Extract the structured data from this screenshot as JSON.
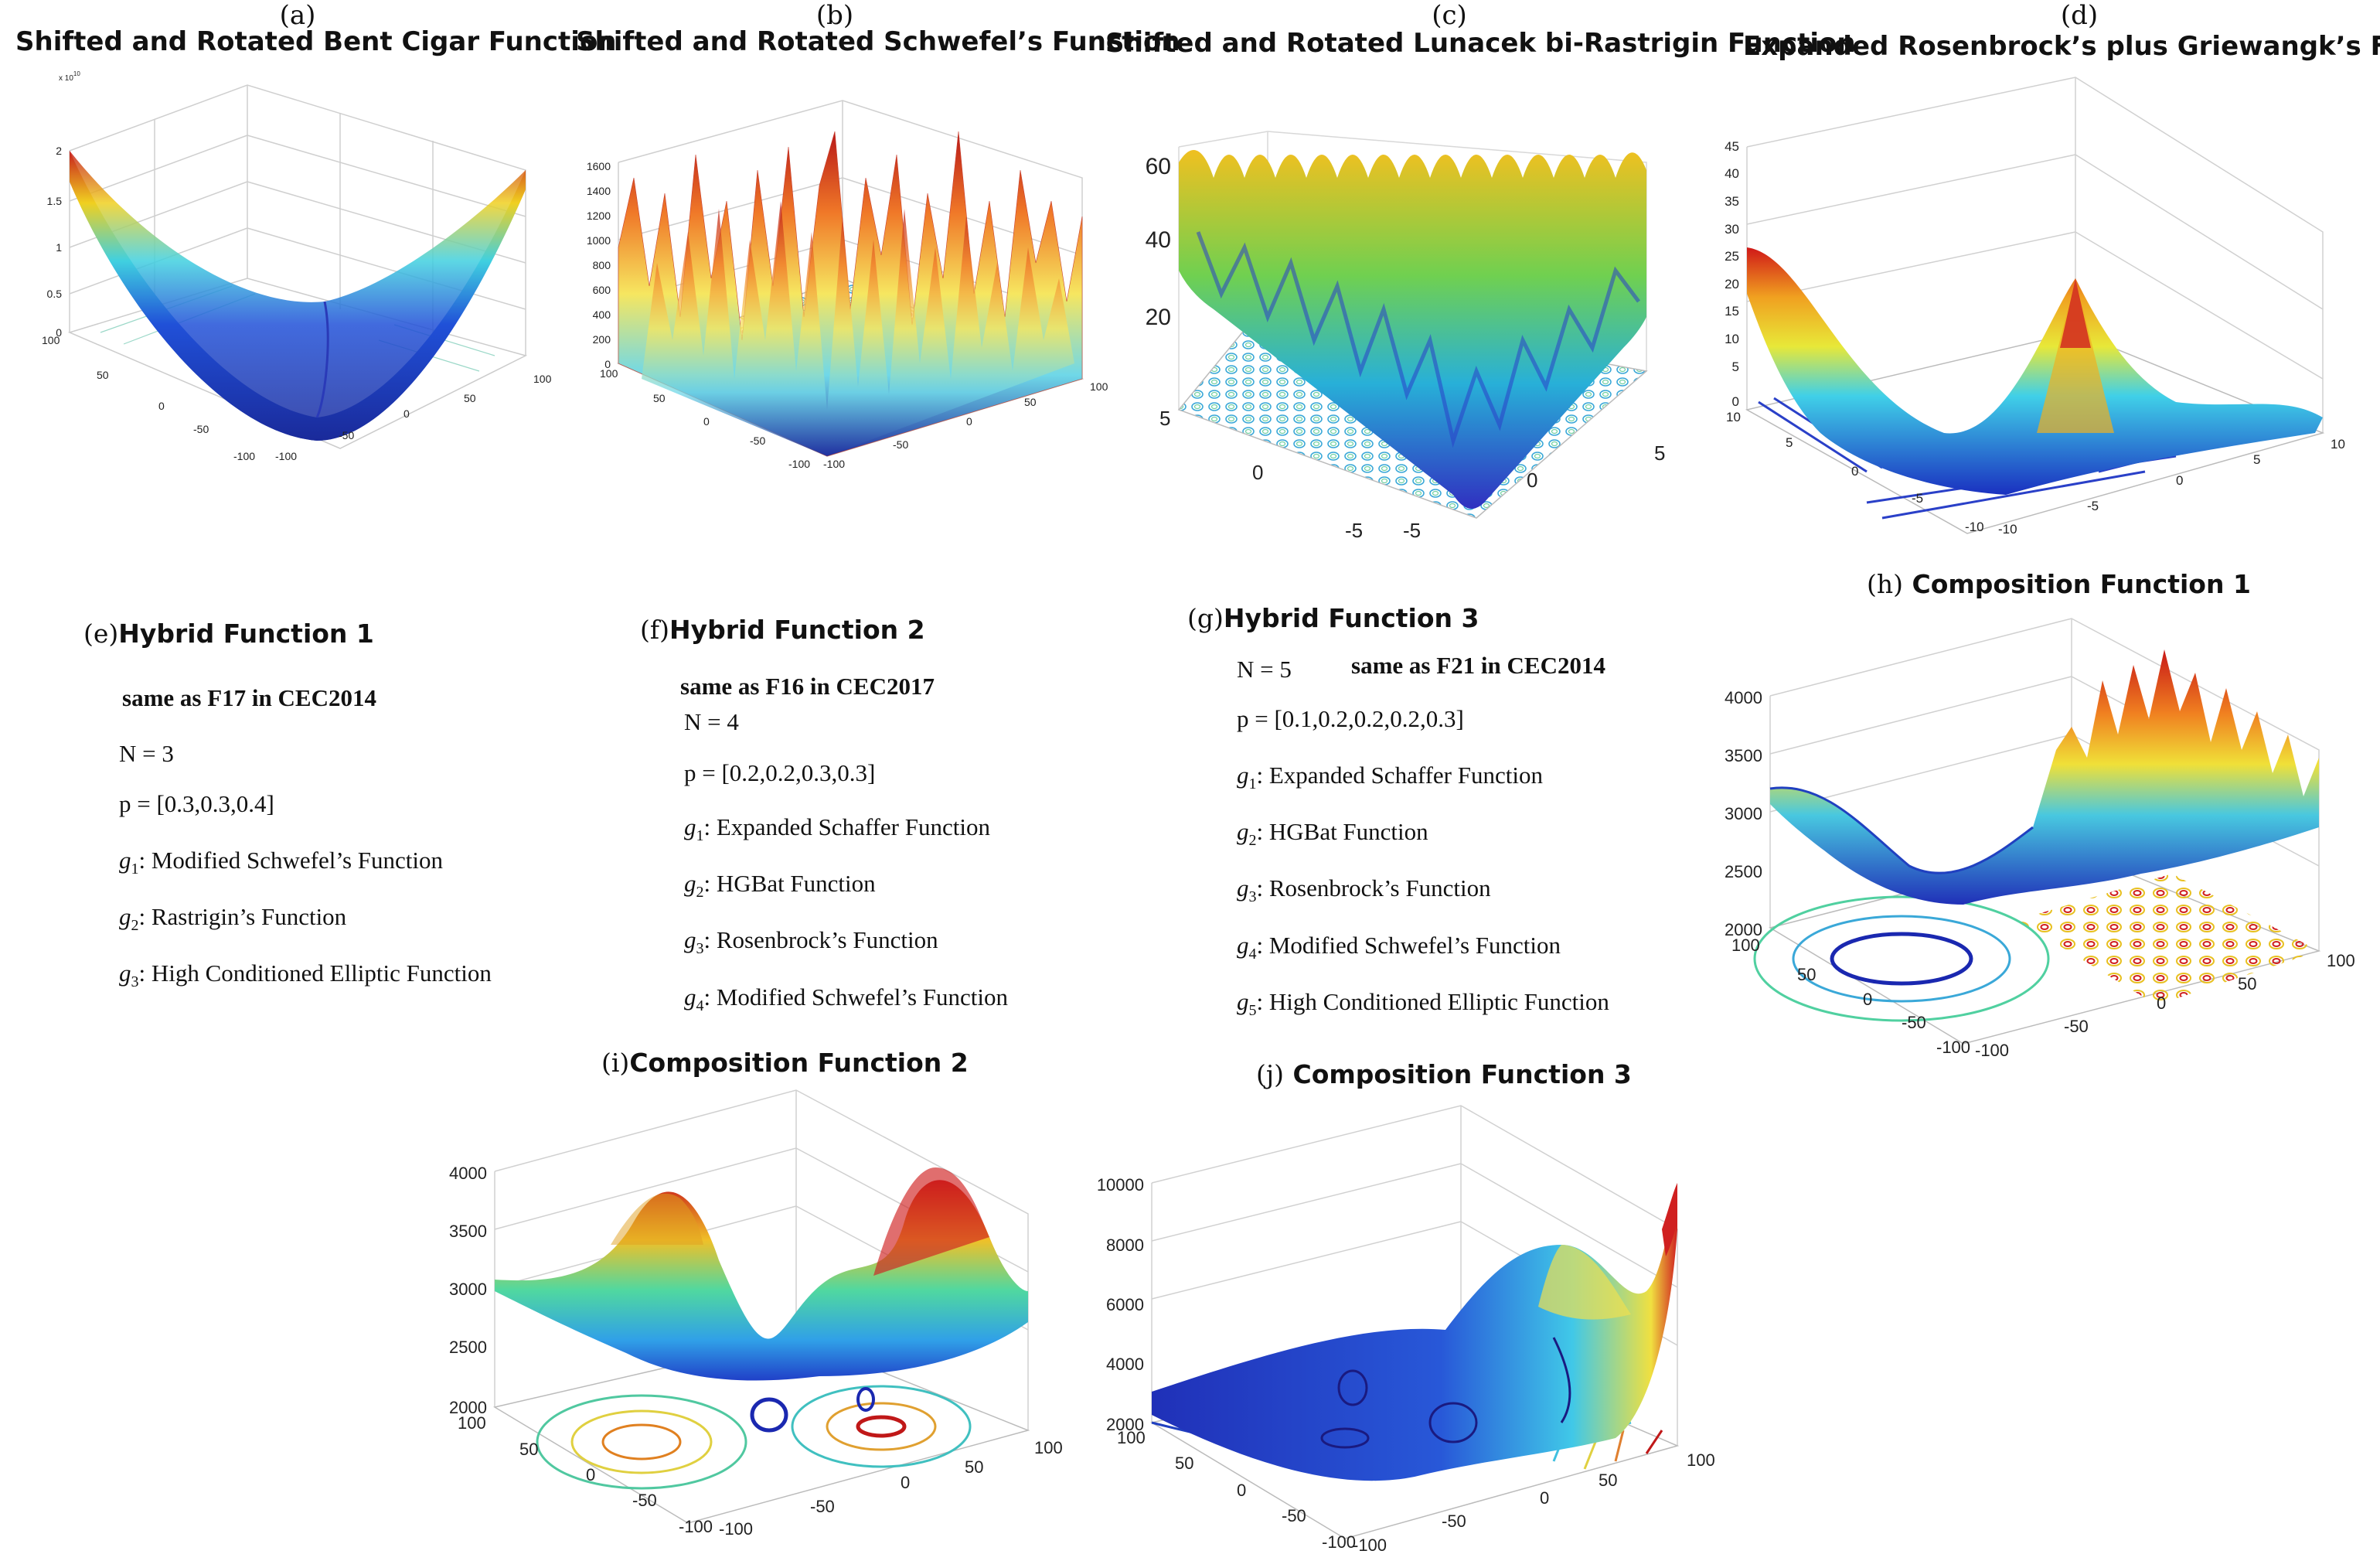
{
  "panels": {
    "a": {
      "letter": "(a)",
      "title": "Shifted and Rotated Bent Cigar Function",
      "z_ticks": [
        "2",
        "1.5",
        "1",
        "0.5",
        "0"
      ],
      "exponent": "x 10",
      "exp_power": "10",
      "y_ticks": [
        "100",
        "50",
        "0",
        "-50",
        "-100"
      ],
      "x_ticks": [
        "-100",
        "-50",
        "0",
        "50",
        "100"
      ]
    },
    "b": {
      "letter": "(b)",
      "title": "Shifted and Rotated Schwefel’s Function",
      "z_ticks": [
        "1600",
        "1400",
        "1200",
        "1000",
        "800",
        "600",
        "400",
        "200",
        "0"
      ],
      "y_ticks": [
        "100",
        "50",
        "0",
        "-50",
        "-100"
      ],
      "x_ticks": [
        "-100",
        "-50",
        "0",
        "50",
        "100"
      ]
    },
    "c": {
      "letter": "(c)",
      "title": "Shifted and Rotated Lunacek bi-Rastrigin Function",
      "z_ticks": [
        "60",
        "40",
        "20"
      ],
      "y_ticks": [
        "5",
        "0",
        "-5"
      ],
      "x_ticks": [
        "-5",
        "0",
        "5"
      ]
    },
    "d": {
      "letter": "(d)",
      "title": "Expanded Rosenbrock’s plus Griewangk’s Function",
      "z_ticks": [
        "45",
        "40",
        "35",
        "30",
        "25",
        "20",
        "15",
        "10",
        "5",
        "0"
      ],
      "y_ticks": [
        "10",
        "5",
        "0",
        "-5",
        "-10"
      ],
      "x_ticks": [
        "-10",
        "-5",
        "0",
        "5",
        "10"
      ]
    },
    "h": {
      "letter": "(h)",
      "title": "Composition Function 1",
      "z_ticks": [
        "4000",
        "3500",
        "3000",
        "2500",
        "2000"
      ],
      "y_ticks": [
        "100",
        "50",
        "0",
        "-50",
        "-100"
      ],
      "x_ticks": [
        "-100",
        "-50",
        "0",
        "50",
        "100"
      ]
    },
    "i": {
      "letter": "(i)",
      "title": "Composition Function 2",
      "z_ticks": [
        "4000",
        "3500",
        "3000",
        "2500",
        "2000"
      ],
      "y_ticks": [
        "100",
        "50",
        "0",
        "-50",
        "-100"
      ],
      "x_ticks": [
        "-100",
        "-50",
        "0",
        "50",
        "100"
      ]
    },
    "j": {
      "letter": "(j)",
      "title": "Composition Function 3",
      "z_ticks": [
        "10000",
        "8000",
        "6000",
        "4000",
        "2000"
      ],
      "y_ticks": [
        "100",
        "50",
        "0",
        "-50",
        "-100"
      ],
      "x_ticks": [
        "-100",
        "-50",
        "0",
        "50",
        "100"
      ]
    }
  },
  "hybrid1": {
    "letter": "(e)",
    "title": "Hybrid Function 1",
    "note": "same as F17 in CEC2014",
    "n": "N = 3",
    "p": "p = [0.3,0.3,0.4]",
    "g": [
      {
        "sym": "g",
        "idx": "1",
        "text": ": Modified Schwefel’s Function"
      },
      {
        "sym": "g",
        "idx": "2",
        "text": ": Rastrigin’s Function"
      },
      {
        "sym": "g",
        "idx": "3",
        "text": ": High Conditioned Elliptic Function"
      }
    ]
  },
  "hybrid2": {
    "letter": "(f)",
    "title": "Hybrid Function 2",
    "note": "same as F16 in CEC2017",
    "n": "N = 4",
    "p": "p = [0.2,0.2,0.3,0.3]",
    "g": [
      {
        "sym": "g",
        "idx": "1",
        "text": ": Expanded Schaffer Function"
      },
      {
        "sym": "g",
        "idx": "2",
        "text": ": HGBat Function"
      },
      {
        "sym": "g",
        "idx": "3",
        "text": ": Rosenbrock’s Function"
      },
      {
        "sym": "g",
        "idx": "4",
        "text": ": Modified Schwefel’s Function"
      }
    ]
  },
  "hybrid3": {
    "letter": "(g)",
    "title": "Hybrid Function 3",
    "note": "same as F21 in CEC2014",
    "n": "N = 5",
    "p": "p = [0.1,0.2,0.2,0.2,0.3]",
    "g": [
      {
        "sym": "g",
        "idx": "1",
        "text": ": Expanded Schaffer Function"
      },
      {
        "sym": "g",
        "idx": "2",
        "text": ": HGBat Function"
      },
      {
        "sym": "g",
        "idx": "3",
        "text": ": Rosenbrock’s Function"
      },
      {
        "sym": "g",
        "idx": "4",
        "text": ": Modified Schwefel’s Function"
      },
      {
        "sym": "g",
        "idx": "5",
        "text": ": High Conditioned Elliptic Function"
      }
    ]
  },
  "colors": {
    "low": "#1a2fb8",
    "mid": "#3fd0e8",
    "high": "#f0e030",
    "peak": "#d01818",
    "axis": "#555555",
    "grid": "#cccccc"
  }
}
